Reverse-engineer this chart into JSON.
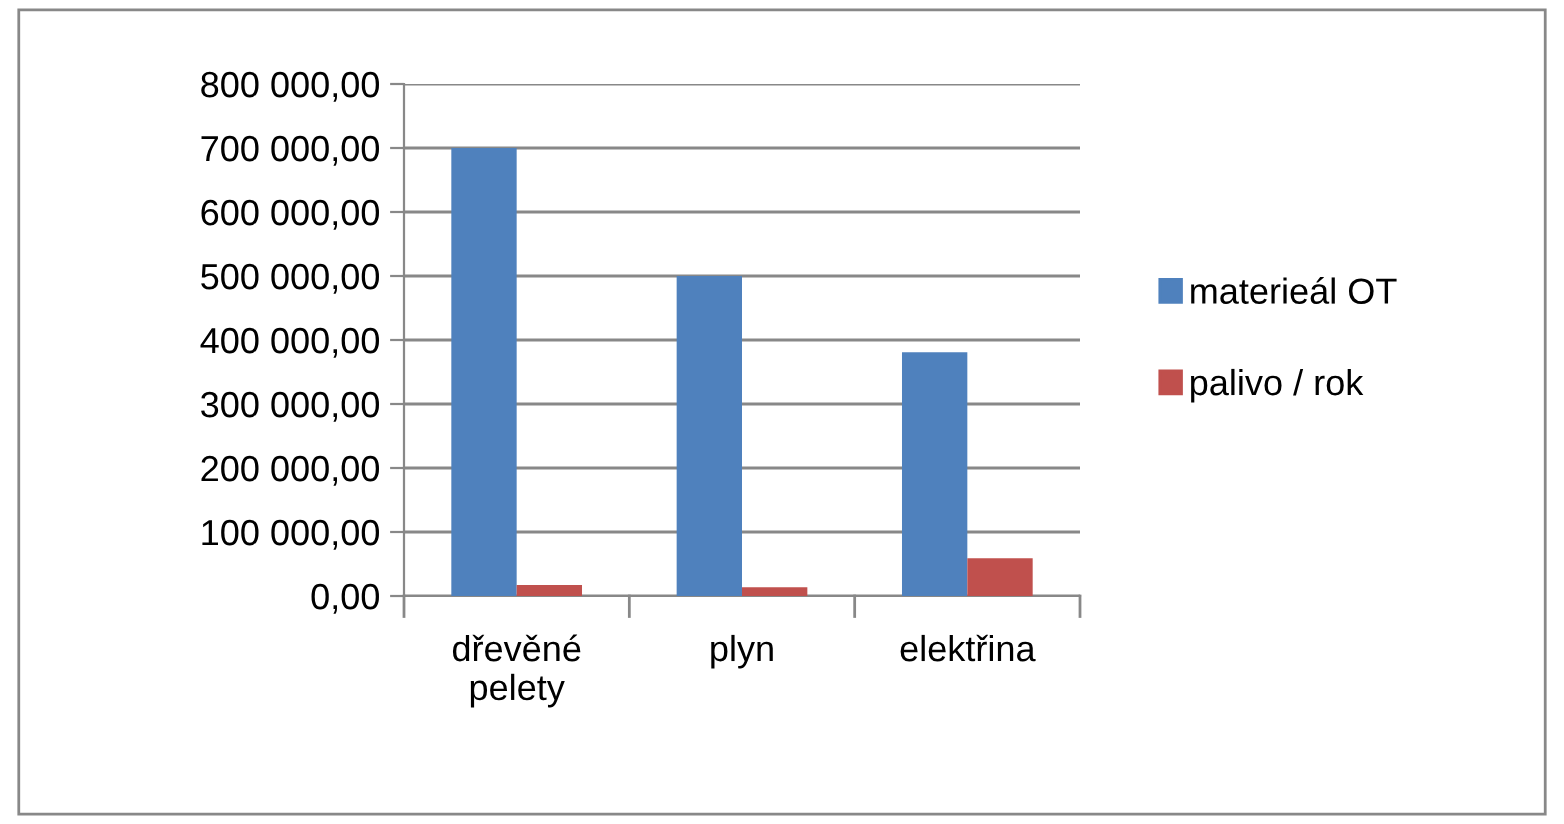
{
  "chart_data": {
    "type": "bar",
    "categories": [
      "dřevěné\npelety",
      "plyn",
      "elektřina"
    ],
    "series": [
      {
        "name": "materieál OT",
        "color": "#4f81bd",
        "values": [
          700000,
          500000,
          381000
        ]
      },
      {
        "name": "palivo / rok",
        "color": "#c0504d",
        "values": [
          17000,
          13500,
          59000
        ]
      }
    ],
    "ylim": [
      0,
      800000
    ],
    "yticks": [
      {
        "value": 0,
        "label": "0,00"
      },
      {
        "value": 100000,
        "label": "100 000,00"
      },
      {
        "value": 200000,
        "label": "200 000,00"
      },
      {
        "value": 300000,
        "label": "300 000,00"
      },
      {
        "value": 400000,
        "label": "400 000,00"
      },
      {
        "value": 500000,
        "label": "500 000,00"
      },
      {
        "value": 600000,
        "label": "600 000,00"
      },
      {
        "value": 700000,
        "label": "700 000,00"
      },
      {
        "value": 800000,
        "label": "800 000,00"
      }
    ],
    "grid": "y",
    "legend": "right"
  }
}
